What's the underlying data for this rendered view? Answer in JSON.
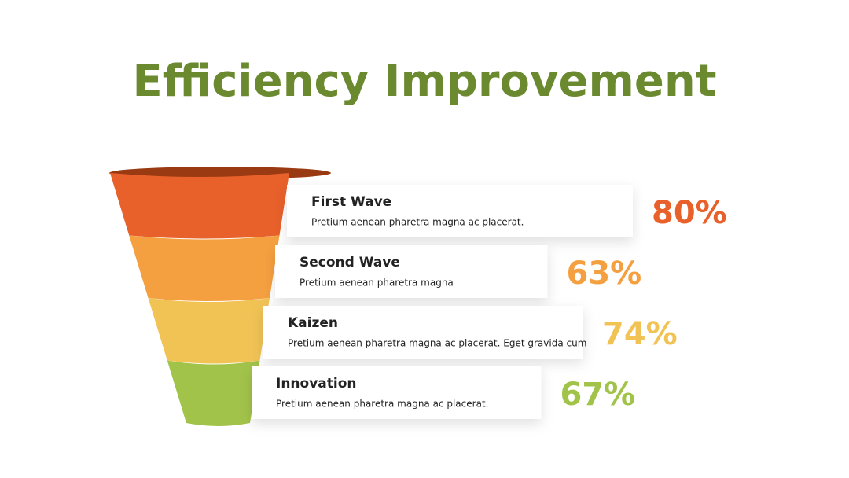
{
  "chart_data": {
    "type": "funnel",
    "title": "Efficiency Improvement",
    "categories": [
      "First Wave",
      "Second Wave",
      "Kaizen",
      "Innovation"
    ],
    "descriptions": [
      "Pretium aenean pharetra magna ac placerat.",
      "Pretium aenean pharetra magna",
      "Pretium aenean pharetra magna ac placerat. Eget gravida cum",
      "Pretium aenean pharetra magna ac placerat."
    ],
    "values": [
      80,
      63,
      74,
      67
    ],
    "value_labels": [
      "80%",
      "63%",
      "74%",
      "67%"
    ],
    "colors": [
      "#e8602a",
      "#f5a040",
      "#f1c355",
      "#a2c34a"
    ],
    "title_color": "#6b8a30"
  }
}
